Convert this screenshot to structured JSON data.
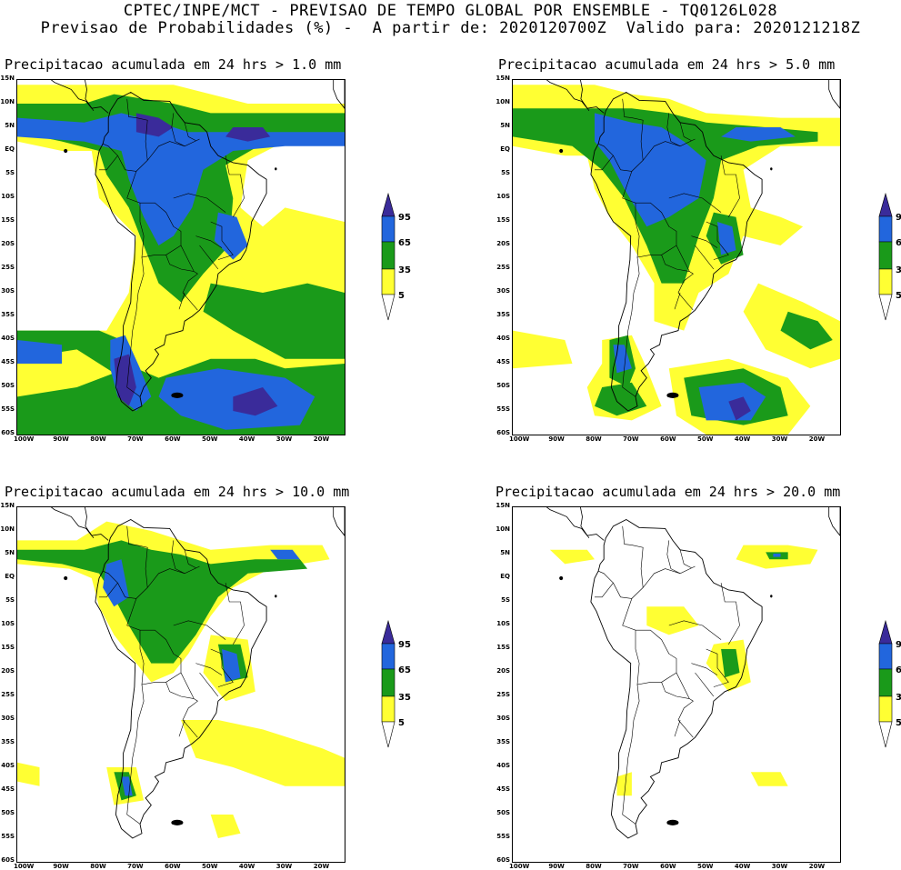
{
  "header": {
    "line1": "CPTEC/INPE/MCT - PREVISAO DE TEMPO GLOBAL POR ENSEMBLE - TQ0126L028",
    "line2": "Previsao de Probabilidades (%) -  A partir de: 2020120700Z  Valido para: 2020121218Z"
  },
  "colors": {
    "yellow": "#ffff33",
    "green": "#1a9a1a",
    "blue": "#2266dd",
    "purple": "#3a2b9a",
    "border": "#000000"
  },
  "legend": {
    "levels": [
      "95",
      "65",
      "35",
      "5"
    ]
  },
  "axes": {
    "lat_labels": [
      "15N",
      "10N",
      "5N",
      "EQ",
      "5S",
      "10S",
      "15S",
      "20S",
      "25S",
      "30S",
      "35S",
      "40S",
      "45S",
      "50S",
      "55S",
      "60S"
    ],
    "lon_labels": [
      "100W",
      "90W",
      "80W",
      "70W",
      "60W",
      "50W",
      "40W",
      "30W",
      "20W"
    ]
  },
  "panels": [
    {
      "title": "Precipitacao acumulada em 24 hrs > 1.0 mm",
      "threshold": 1.0
    },
    {
      "title": "Precipitacao acumulada em 24 hrs > 5.0 mm",
      "threshold": 5.0
    },
    {
      "title": "Precipitacao acumulada em 24 hrs > 10.0 mm",
      "threshold": 10.0
    },
    {
      "title": "Precipitacao acumulada em 24 hrs > 20.0 mm",
      "threshold": 20.0
    }
  ]
}
